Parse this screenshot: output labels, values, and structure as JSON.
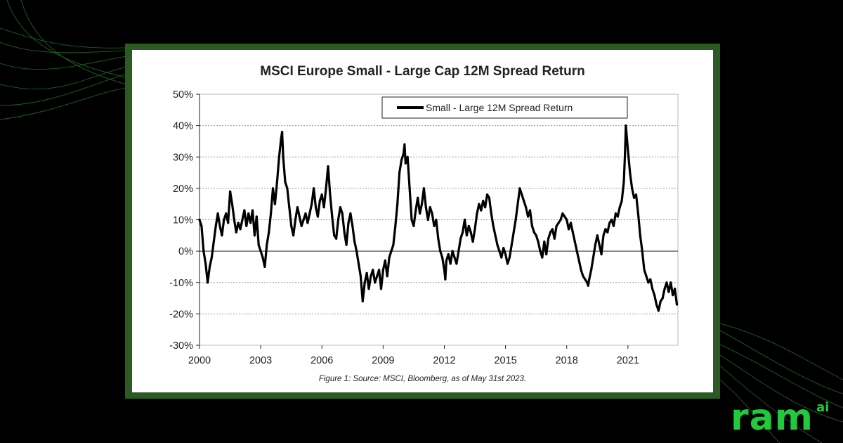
{
  "chart_data": {
    "type": "line",
    "title": "MSCI Europe Small - Large Cap 12M Spread Return",
    "xlabel": "",
    "ylabel": "",
    "xlim": [
      2000,
      2023.45
    ],
    "ylim": [
      -0.3,
      0.5
    ],
    "y_ticks": [
      {
        "value": 0.5,
        "label": "50%"
      },
      {
        "value": 0.4,
        "label": "40%"
      },
      {
        "value": 0.3,
        "label": "30%"
      },
      {
        "value": 0.2,
        "label": "20%"
      },
      {
        "value": 0.1,
        "label": "10%"
      },
      {
        "value": 0.0,
        "label": "0%"
      },
      {
        "value": -0.1,
        "label": "-10%"
      },
      {
        "value": -0.2,
        "label": "-20%"
      },
      {
        "value": -0.3,
        "label": "-30%"
      }
    ],
    "x_ticks": [
      {
        "value": 2000,
        "label": "2000"
      },
      {
        "value": 2003,
        "label": "2003"
      },
      {
        "value": 2006,
        "label": "2006"
      },
      {
        "value": 2009,
        "label": "2009"
      },
      {
        "value": 2012,
        "label": "2012"
      },
      {
        "value": 2015,
        "label": "2015"
      },
      {
        "value": 2018,
        "label": "2018"
      },
      {
        "value": 2021,
        "label": "2021"
      }
    ],
    "grid": "horizontal",
    "legend_position": "top-right",
    "series": [
      {
        "name": "Small - Large 12M Spread Return",
        "color": "#000000",
        "points": [
          [
            2000.0,
            0.1
          ],
          [
            2000.1,
            0.08
          ],
          [
            2000.2,
            0.0
          ],
          [
            2000.3,
            -0.04
          ],
          [
            2000.4,
            -0.1
          ],
          [
            2000.5,
            -0.05
          ],
          [
            2000.6,
            -0.02
          ],
          [
            2000.7,
            0.03
          ],
          [
            2000.8,
            0.08
          ],
          [
            2000.9,
            0.12
          ],
          [
            2001.0,
            0.08
          ],
          [
            2001.1,
            0.05
          ],
          [
            2001.2,
            0.1
          ],
          [
            2001.3,
            0.12
          ],
          [
            2001.4,
            0.09
          ],
          [
            2001.5,
            0.19
          ],
          [
            2001.6,
            0.15
          ],
          [
            2001.7,
            0.1
          ],
          [
            2001.8,
            0.06
          ],
          [
            2001.9,
            0.09
          ],
          [
            2002.0,
            0.07
          ],
          [
            2002.1,
            0.1
          ],
          [
            2002.2,
            0.13
          ],
          [
            2002.3,
            0.08
          ],
          [
            2002.4,
            0.12
          ],
          [
            2002.5,
            0.09
          ],
          [
            2002.6,
            0.13
          ],
          [
            2002.7,
            0.05
          ],
          [
            2002.8,
            0.11
          ],
          [
            2002.9,
            0.02
          ],
          [
            2003.0,
            0.0
          ],
          [
            2003.1,
            -0.02
          ],
          [
            2003.2,
            -0.05
          ],
          [
            2003.3,
            0.02
          ],
          [
            2003.4,
            0.06
          ],
          [
            2003.5,
            0.12
          ],
          [
            2003.6,
            0.2
          ],
          [
            2003.7,
            0.15
          ],
          [
            2003.8,
            0.22
          ],
          [
            2003.9,
            0.3
          ],
          [
            2004.0,
            0.36
          ],
          [
            2004.05,
            0.38
          ],
          [
            2004.1,
            0.3
          ],
          [
            2004.2,
            0.22
          ],
          [
            2004.3,
            0.2
          ],
          [
            2004.4,
            0.14
          ],
          [
            2004.5,
            0.08
          ],
          [
            2004.6,
            0.05
          ],
          [
            2004.7,
            0.1
          ],
          [
            2004.8,
            0.14
          ],
          [
            2004.9,
            0.11
          ],
          [
            2005.0,
            0.08
          ],
          [
            2005.1,
            0.1
          ],
          [
            2005.2,
            0.12
          ],
          [
            2005.3,
            0.09
          ],
          [
            2005.4,
            0.12
          ],
          [
            2005.5,
            0.15
          ],
          [
            2005.6,
            0.2
          ],
          [
            2005.7,
            0.14
          ],
          [
            2005.8,
            0.11
          ],
          [
            2005.9,
            0.16
          ],
          [
            2006.0,
            0.18
          ],
          [
            2006.1,
            0.14
          ],
          [
            2006.2,
            0.2
          ],
          [
            2006.3,
            0.27
          ],
          [
            2006.4,
            0.18
          ],
          [
            2006.5,
            0.11
          ],
          [
            2006.6,
            0.05
          ],
          [
            2006.7,
            0.04
          ],
          [
            2006.8,
            0.1
          ],
          [
            2006.9,
            0.14
          ],
          [
            2007.0,
            0.12
          ],
          [
            2007.1,
            0.06
          ],
          [
            2007.2,
            0.02
          ],
          [
            2007.3,
            0.09
          ],
          [
            2007.4,
            0.12
          ],
          [
            2007.5,
            0.08
          ],
          [
            2007.6,
            0.03
          ],
          [
            2007.7,
            0.0
          ],
          [
            2007.8,
            -0.04
          ],
          [
            2007.9,
            -0.08
          ],
          [
            2008.0,
            -0.16
          ],
          [
            2008.1,
            -0.1
          ],
          [
            2008.2,
            -0.07
          ],
          [
            2008.3,
            -0.12
          ],
          [
            2008.4,
            -0.08
          ],
          [
            2008.5,
            -0.06
          ],
          [
            2008.6,
            -0.1
          ],
          [
            2008.7,
            -0.08
          ],
          [
            2008.8,
            -0.06
          ],
          [
            2008.9,
            -0.12
          ],
          [
            2009.0,
            -0.06
          ],
          [
            2009.1,
            -0.03
          ],
          [
            2009.2,
            -0.08
          ],
          [
            2009.3,
            -0.02
          ],
          [
            2009.4,
            0.0
          ],
          [
            2009.5,
            0.02
          ],
          [
            2009.6,
            0.08
          ],
          [
            2009.7,
            0.15
          ],
          [
            2009.8,
            0.25
          ],
          [
            2009.9,
            0.29
          ],
          [
            2010.0,
            0.31
          ],
          [
            2010.05,
            0.34
          ],
          [
            2010.1,
            0.28
          ],
          [
            2010.2,
            0.3
          ],
          [
            2010.3,
            0.2
          ],
          [
            2010.4,
            0.1
          ],
          [
            2010.5,
            0.08
          ],
          [
            2010.6,
            0.13
          ],
          [
            2010.7,
            0.17
          ],
          [
            2010.8,
            0.12
          ],
          [
            2010.9,
            0.15
          ],
          [
            2011.0,
            0.2
          ],
          [
            2011.1,
            0.14
          ],
          [
            2011.2,
            0.1
          ],
          [
            2011.3,
            0.14
          ],
          [
            2011.4,
            0.12
          ],
          [
            2011.5,
            0.08
          ],
          [
            2011.6,
            0.1
          ],
          [
            2011.7,
            0.04
          ],
          [
            2011.8,
            0.0
          ],
          [
            2011.9,
            -0.02
          ],
          [
            2012.0,
            -0.06
          ],
          [
            2012.05,
            -0.09
          ],
          [
            2012.1,
            -0.03
          ],
          [
            2012.2,
            -0.01
          ],
          [
            2012.3,
            -0.04
          ],
          [
            2012.4,
            0.0
          ],
          [
            2012.5,
            -0.02
          ],
          [
            2012.6,
            -0.04
          ],
          [
            2012.7,
            0.0
          ],
          [
            2012.8,
            0.04
          ],
          [
            2012.9,
            0.06
          ],
          [
            2013.0,
            0.1
          ],
          [
            2013.1,
            0.05
          ],
          [
            2013.2,
            0.08
          ],
          [
            2013.3,
            0.06
          ],
          [
            2013.4,
            0.03
          ],
          [
            2013.5,
            0.07
          ],
          [
            2013.6,
            0.12
          ],
          [
            2013.7,
            0.15
          ],
          [
            2013.8,
            0.13
          ],
          [
            2013.9,
            0.16
          ],
          [
            2014.0,
            0.14
          ],
          [
            2014.1,
            0.18
          ],
          [
            2014.2,
            0.17
          ],
          [
            2014.3,
            0.12
          ],
          [
            2014.4,
            0.08
          ],
          [
            2014.5,
            0.05
          ],
          [
            2014.6,
            0.02
          ],
          [
            2014.7,
            0.0
          ],
          [
            2014.8,
            -0.02
          ],
          [
            2014.9,
            0.01
          ],
          [
            2015.0,
            -0.01
          ],
          [
            2015.1,
            -0.04
          ],
          [
            2015.2,
            -0.02
          ],
          [
            2015.3,
            0.02
          ],
          [
            2015.4,
            0.06
          ],
          [
            2015.5,
            0.1
          ],
          [
            2015.6,
            0.15
          ],
          [
            2015.7,
            0.2
          ],
          [
            2015.8,
            0.18
          ],
          [
            2015.9,
            0.16
          ],
          [
            2016.0,
            0.14
          ],
          [
            2016.1,
            0.11
          ],
          [
            2016.2,
            0.13
          ],
          [
            2016.3,
            0.08
          ],
          [
            2016.4,
            0.06
          ],
          [
            2016.5,
            0.05
          ],
          [
            2016.6,
            0.03
          ],
          [
            2016.7,
            0.0
          ],
          [
            2016.8,
            -0.02
          ],
          [
            2016.9,
            0.03
          ],
          [
            2017.0,
            -0.01
          ],
          [
            2017.1,
            0.04
          ],
          [
            2017.2,
            0.06
          ],
          [
            2017.3,
            0.07
          ],
          [
            2017.4,
            0.04
          ],
          [
            2017.5,
            0.08
          ],
          [
            2017.6,
            0.09
          ],
          [
            2017.7,
            0.1
          ],
          [
            2017.8,
            0.12
          ],
          [
            2017.9,
            0.11
          ],
          [
            2018.0,
            0.1
          ],
          [
            2018.1,
            0.07
          ],
          [
            2018.2,
            0.09
          ],
          [
            2018.3,
            0.06
          ],
          [
            2018.4,
            0.03
          ],
          [
            2018.5,
            0.0
          ],
          [
            2018.6,
            -0.03
          ],
          [
            2018.7,
            -0.06
          ],
          [
            2018.8,
            -0.08
          ],
          [
            2018.9,
            -0.09
          ],
          [
            2019.0,
            -0.1
          ],
          [
            2019.05,
            -0.11
          ],
          [
            2019.1,
            -0.09
          ],
          [
            2019.2,
            -0.06
          ],
          [
            2019.3,
            -0.02
          ],
          [
            2019.4,
            0.02
          ],
          [
            2019.5,
            0.05
          ],
          [
            2019.6,
            0.02
          ],
          [
            2019.7,
            -0.01
          ],
          [
            2019.8,
            0.05
          ],
          [
            2019.9,
            0.07
          ],
          [
            2020.0,
            0.06
          ],
          [
            2020.1,
            0.09
          ],
          [
            2020.2,
            0.1
          ],
          [
            2020.3,
            0.08
          ],
          [
            2020.4,
            0.12
          ],
          [
            2020.5,
            0.11
          ],
          [
            2020.6,
            0.14
          ],
          [
            2020.7,
            0.16
          ],
          [
            2020.8,
            0.22
          ],
          [
            2020.85,
            0.3
          ],
          [
            2020.9,
            0.4
          ],
          [
            2021.0,
            0.32
          ],
          [
            2021.1,
            0.25
          ],
          [
            2021.2,
            0.2
          ],
          [
            2021.3,
            0.17
          ],
          [
            2021.4,
            0.18
          ],
          [
            2021.5,
            0.12
          ],
          [
            2021.6,
            0.05
          ],
          [
            2021.7,
            0.0
          ],
          [
            2021.8,
            -0.06
          ],
          [
            2021.9,
            -0.08
          ],
          [
            2022.0,
            -0.1
          ],
          [
            2022.1,
            -0.09
          ],
          [
            2022.2,
            -0.12
          ],
          [
            2022.3,
            -0.14
          ],
          [
            2022.4,
            -0.17
          ],
          [
            2022.5,
            -0.19
          ],
          [
            2022.6,
            -0.16
          ],
          [
            2022.7,
            -0.15
          ],
          [
            2022.8,
            -0.12
          ],
          [
            2022.9,
            -0.1
          ],
          [
            2023.0,
            -0.13
          ],
          [
            2023.1,
            -0.1
          ],
          [
            2023.2,
            -0.14
          ],
          [
            2023.3,
            -0.12
          ],
          [
            2023.4,
            -0.17
          ]
        ]
      }
    ]
  },
  "caption": "Figure 1: Source: MSCI, Bloomberg, as of May 31st 2023.",
  "logo": {
    "text": "ram",
    "superscript": "ai",
    "color": "#22c93a"
  },
  "colors": {
    "frame": "#2b5a22",
    "accent_green": "#22c93a",
    "background": "#000000"
  }
}
